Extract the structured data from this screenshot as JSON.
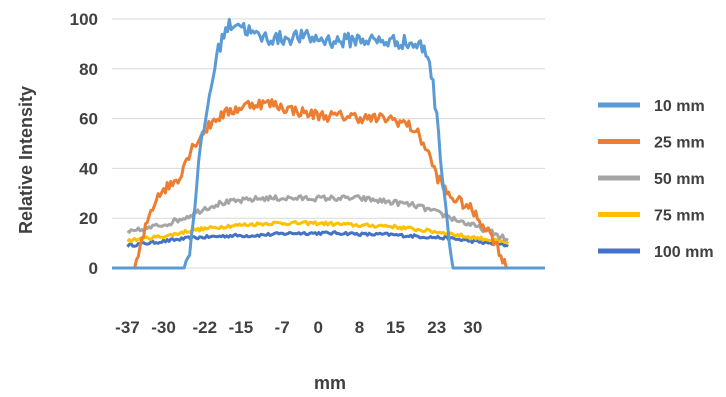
{
  "chart_data": {
    "type": "line",
    "title": "",
    "xlabel": "mm",
    "ylabel": "Relative Intensity",
    "xlim": [
      -40,
      44
    ],
    "ylim": [
      0,
      100
    ],
    "x_ticks": [
      -37,
      -30,
      -22,
      -15,
      -7,
      0,
      8,
      15,
      23,
      30
    ],
    "y_ticks": [
      0,
      20,
      40,
      60,
      80,
      100
    ],
    "grid": "horizontal",
    "legend_position": "right",
    "series": [
      {
        "name": "10 mm",
        "color": "#5b9bd5",
        "points": [
          [
            -40,
            0
          ],
          [
            -26.5,
            0
          ],
          [
            -25,
            5
          ],
          [
            -24,
            25
          ],
          [
            -23,
            45
          ],
          [
            -22,
            58
          ],
          [
            -21,
            70
          ],
          [
            -20,
            82
          ],
          [
            -19,
            90
          ],
          [
            -18,
            96
          ],
          [
            -16,
            99
          ],
          [
            -14,
            96
          ],
          [
            -12,
            93
          ],
          [
            -8,
            92
          ],
          [
            -4,
            93
          ],
          [
            0,
            92
          ],
          [
            4,
            91
          ],
          [
            8,
            92
          ],
          [
            12,
            91
          ],
          [
            16,
            91
          ],
          [
            20,
            89
          ],
          [
            21.5,
            85
          ],
          [
            22.5,
            70
          ],
          [
            23.5,
            50
          ],
          [
            24.5,
            30
          ],
          [
            25.5,
            10
          ],
          [
            26,
            0
          ],
          [
            44,
            0
          ]
        ],
        "noise": 3.0
      },
      {
        "name": "25 mm",
        "color": "#ed7d31",
        "points": [
          [
            -37,
            0
          ],
          [
            -35.5,
            0
          ],
          [
            -34.5,
            8
          ],
          [
            -33,
            20
          ],
          [
            -31,
            30
          ],
          [
            -29,
            33
          ],
          [
            -27,
            36
          ],
          [
            -26,
            42
          ],
          [
            -24,
            50
          ],
          [
            -22,
            55
          ],
          [
            -20,
            60
          ],
          [
            -17,
            63
          ],
          [
            -13,
            66
          ],
          [
            -9,
            66
          ],
          [
            -6,
            64
          ],
          [
            -2,
            62
          ],
          [
            2,
            61
          ],
          [
            6,
            61
          ],
          [
            10,
            60
          ],
          [
            14,
            60
          ],
          [
            17,
            58
          ],
          [
            19,
            55
          ],
          [
            21,
            48
          ],
          [
            23,
            37
          ],
          [
            25,
            30
          ],
          [
            27,
            27
          ],
          [
            29,
            25
          ],
          [
            31,
            20
          ],
          [
            33,
            15
          ],
          [
            34.5,
            10
          ],
          [
            35.5,
            5
          ],
          [
            36.5,
            0
          ]
        ],
        "noise": 2.2
      },
      {
        "name": "50 mm",
        "color": "#a5a5a5",
        "points": [
          [
            -37,
            14
          ],
          [
            -33,
            16
          ],
          [
            -29,
            18
          ],
          [
            -25,
            21
          ],
          [
            -22,
            24
          ],
          [
            -19,
            26
          ],
          [
            -15,
            27
          ],
          [
            -11,
            28
          ],
          [
            -7,
            28
          ],
          [
            -3,
            28
          ],
          [
            0,
            28
          ],
          [
            4,
            28
          ],
          [
            8,
            28
          ],
          [
            12,
            27
          ],
          [
            16,
            26
          ],
          [
            19,
            25
          ],
          [
            22,
            23
          ],
          [
            26,
            20
          ],
          [
            30,
            17
          ],
          [
            33,
            15
          ],
          [
            35,
            13
          ],
          [
            37,
            11
          ]
        ],
        "noise": 1.1
      },
      {
        "name": "75 mm",
        "color": "#ffc000",
        "points": [
          [
            -37,
            11
          ],
          [
            -33,
            12
          ],
          [
            -29,
            13
          ],
          [
            -25,
            15
          ],
          [
            -21,
            16
          ],
          [
            -17,
            17
          ],
          [
            -13,
            17.5
          ],
          [
            -9,
            18
          ],
          [
            -5,
            18
          ],
          [
            0,
            18
          ],
          [
            5,
            17.5
          ],
          [
            9,
            17
          ],
          [
            13,
            17
          ],
          [
            17,
            16
          ],
          [
            21,
            15
          ],
          [
            25,
            14
          ],
          [
            29,
            12.5
          ],
          [
            33,
            11.5
          ],
          [
            37,
            10
          ]
        ],
        "noise": 0.7
      },
      {
        "name": "100 mm",
        "color": "#4472c4",
        "points": [
          [
            -37,
            9
          ],
          [
            -33,
            10
          ],
          [
            -29,
            11
          ],
          [
            -25,
            12
          ],
          [
            -21,
            12.5
          ],
          [
            -17,
            13
          ],
          [
            -13,
            13
          ],
          [
            -9,
            13.5
          ],
          [
            -5,
            14
          ],
          [
            0,
            14
          ],
          [
            5,
            14
          ],
          [
            9,
            13.5
          ],
          [
            13,
            13.5
          ],
          [
            17,
            13
          ],
          [
            21,
            12.5
          ],
          [
            25,
            12
          ],
          [
            29,
            11
          ],
          [
            33,
            10
          ],
          [
            37,
            9
          ]
        ],
        "noise": 0.6
      }
    ]
  }
}
